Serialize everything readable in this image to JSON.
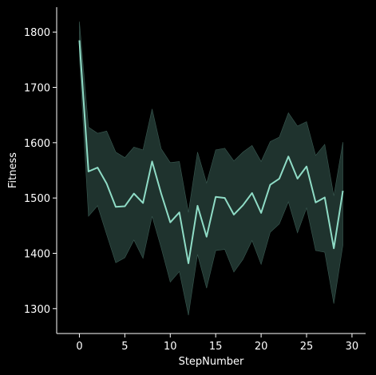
{
  "chart_data": {
    "type": "line",
    "title": "",
    "xlabel": "StepNumber",
    "ylabel": "Fitness",
    "xlim": [
      -2.5,
      31.5
    ],
    "ylim": [
      1255,
      1845
    ],
    "x_ticks": [
      0,
      5,
      10,
      15,
      20,
      25,
      30
    ],
    "y_ticks": [
      1300,
      1400,
      1500,
      1600,
      1700,
      1800
    ],
    "grid": false,
    "legend": "none",
    "colors": {
      "line": "#8fdcc6",
      "band": "#1f332e",
      "band_edge": "#3a5a52",
      "axis": "#ffffff",
      "background": "#000000"
    },
    "series": [
      {
        "x": [
          0,
          1,
          2,
          3,
          4,
          5,
          6,
          7,
          8,
          9,
          10,
          11,
          12,
          13,
          14,
          15,
          16,
          17,
          18,
          19,
          20,
          21,
          22,
          23,
          24,
          25,
          26,
          27,
          28,
          29
        ],
        "values": [
          1785,
          1548,
          1555,
          1526,
          1484,
          1485,
          1508,
          1491,
          1566,
          1508,
          1456,
          1474,
          1382,
          1486,
          1430,
          1502,
          1500,
          1470,
          1487,
          1509,
          1473,
          1524,
          1535,
          1575,
          1535,
          1557,
          1492,
          1501,
          1409,
          1513
        ],
        "upper": [
          1819,
          1628,
          1617,
          1621,
          1583,
          1573,
          1592,
          1587,
          1661,
          1589,
          1564,
          1566,
          1474,
          1583,
          1527,
          1587,
          1590,
          1567,
          1583,
          1595,
          1566,
          1602,
          1610,
          1654,
          1630,
          1638,
          1577,
          1597,
          1504,
          1601
        ],
        "lower": [
          1755,
          1467,
          1486,
          1434,
          1383,
          1392,
          1424,
          1391,
          1467,
          1410,
          1348,
          1367,
          1288,
          1398,
          1337,
          1405,
          1407,
          1366,
          1389,
          1423,
          1380,
          1438,
          1453,
          1493,
          1437,
          1482,
          1405,
          1402,
          1309,
          1415
        ]
      }
    ]
  }
}
